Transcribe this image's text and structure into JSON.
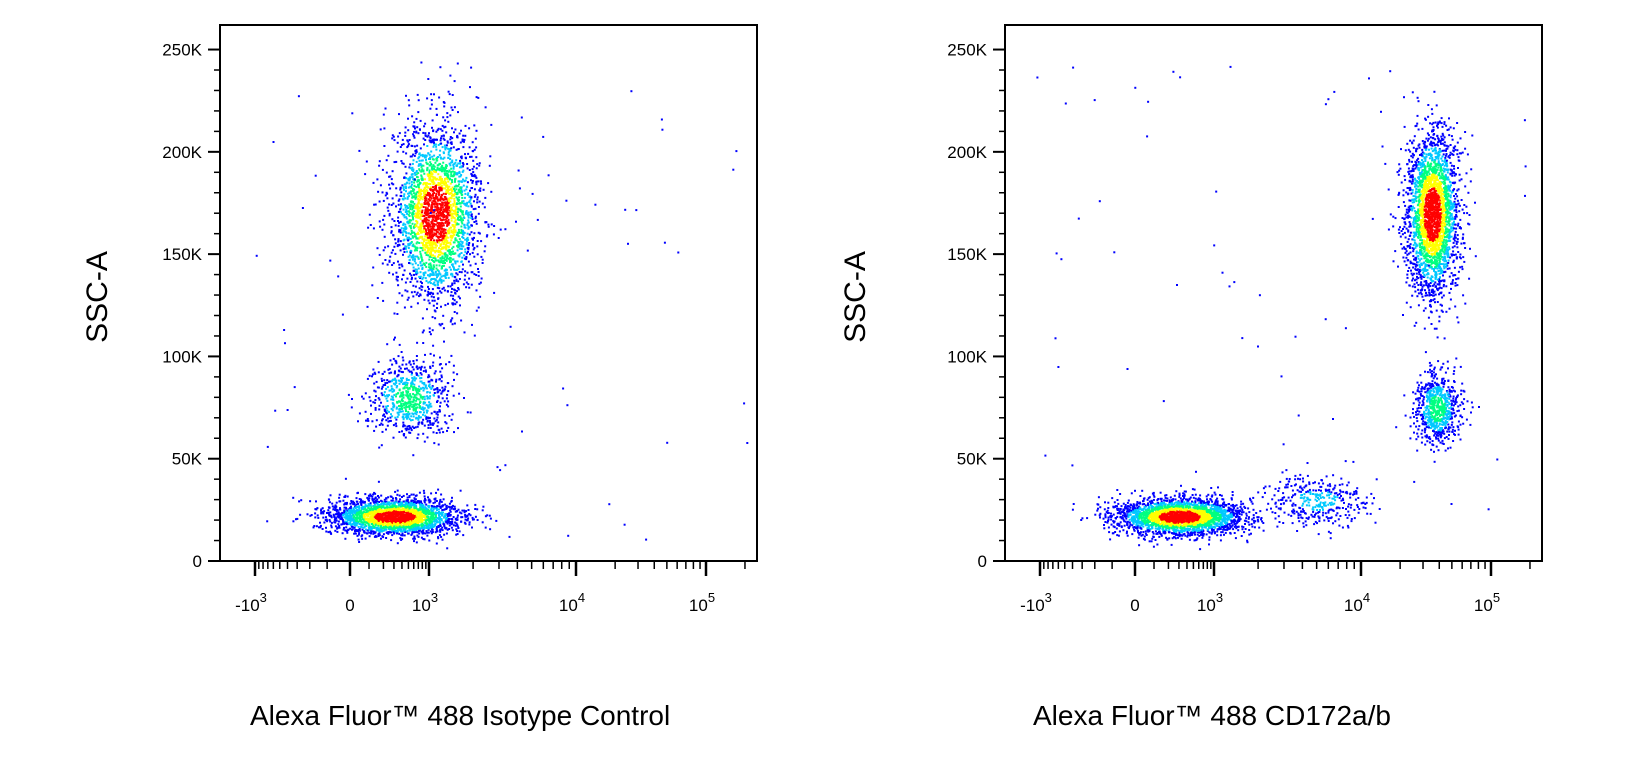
{
  "colors": {
    "density_low": "#0000ff",
    "density_mid_low": "#00c8ff",
    "density_mid": "#00ff80",
    "density_mid_high": "#ffff00",
    "density_high": "#ff0000"
  },
  "chart_data": [
    {
      "type": "scatter",
      "subtype": "flow-cytometry density dot plot",
      "xlabel": "Alexa Fluor™ 488 Isotype Control",
      "ylabel": "SSC-A",
      "x_scale": "biexponential",
      "x_ticks": [
        "-10^3",
        "0",
        "10^3",
        "10^4",
        "10^5"
      ],
      "y_ticks": [
        "0",
        "50K",
        "100K",
        "150K",
        "200K",
        "250K"
      ],
      "ylim": [
        0,
        262000
      ],
      "xlim": [
        -1500,
        150000
      ],
      "populations": [
        {
          "x_center": 300,
          "y_center": 22000,
          "x_spread": 900,
          "y_spread": 5000,
          "density": "high"
        },
        {
          "x_center": 1100,
          "y_center": 170000,
          "x_spread": 600,
          "y_spread": 38000,
          "density": "high"
        },
        {
          "x_center": 500,
          "y_center": 80000,
          "x_spread": 600,
          "y_spread": 15000,
          "density": "medium"
        }
      ]
    },
    {
      "type": "scatter",
      "subtype": "flow-cytometry density dot plot",
      "xlabel": "Alexa Fluor™ 488 CD172a/b",
      "ylabel": "SSC-A",
      "x_scale": "biexponential",
      "x_ticks": [
        "-10^3",
        "0",
        "10^3",
        "10^4",
        "10^5"
      ],
      "y_ticks": [
        "0",
        "50K",
        "100K",
        "150K",
        "200K",
        "250K"
      ],
      "ylim": [
        0,
        262000
      ],
      "xlim": [
        -1500,
        150000
      ],
      "populations": [
        {
          "x_center": 300,
          "y_center": 22000,
          "x_spread": 900,
          "y_spread": 5000,
          "density": "high"
        },
        {
          "x_center": 35000,
          "y_center": 170000,
          "x_spread": 9000,
          "y_spread": 36000,
          "density": "high"
        },
        {
          "x_center": 38000,
          "y_center": 75000,
          "x_spread": 7000,
          "y_spread": 14000,
          "density": "medium"
        },
        {
          "x_center": 5000,
          "y_center": 30000,
          "x_spread": 4000,
          "y_spread": 8000,
          "density": "low"
        }
      ]
    }
  ]
}
